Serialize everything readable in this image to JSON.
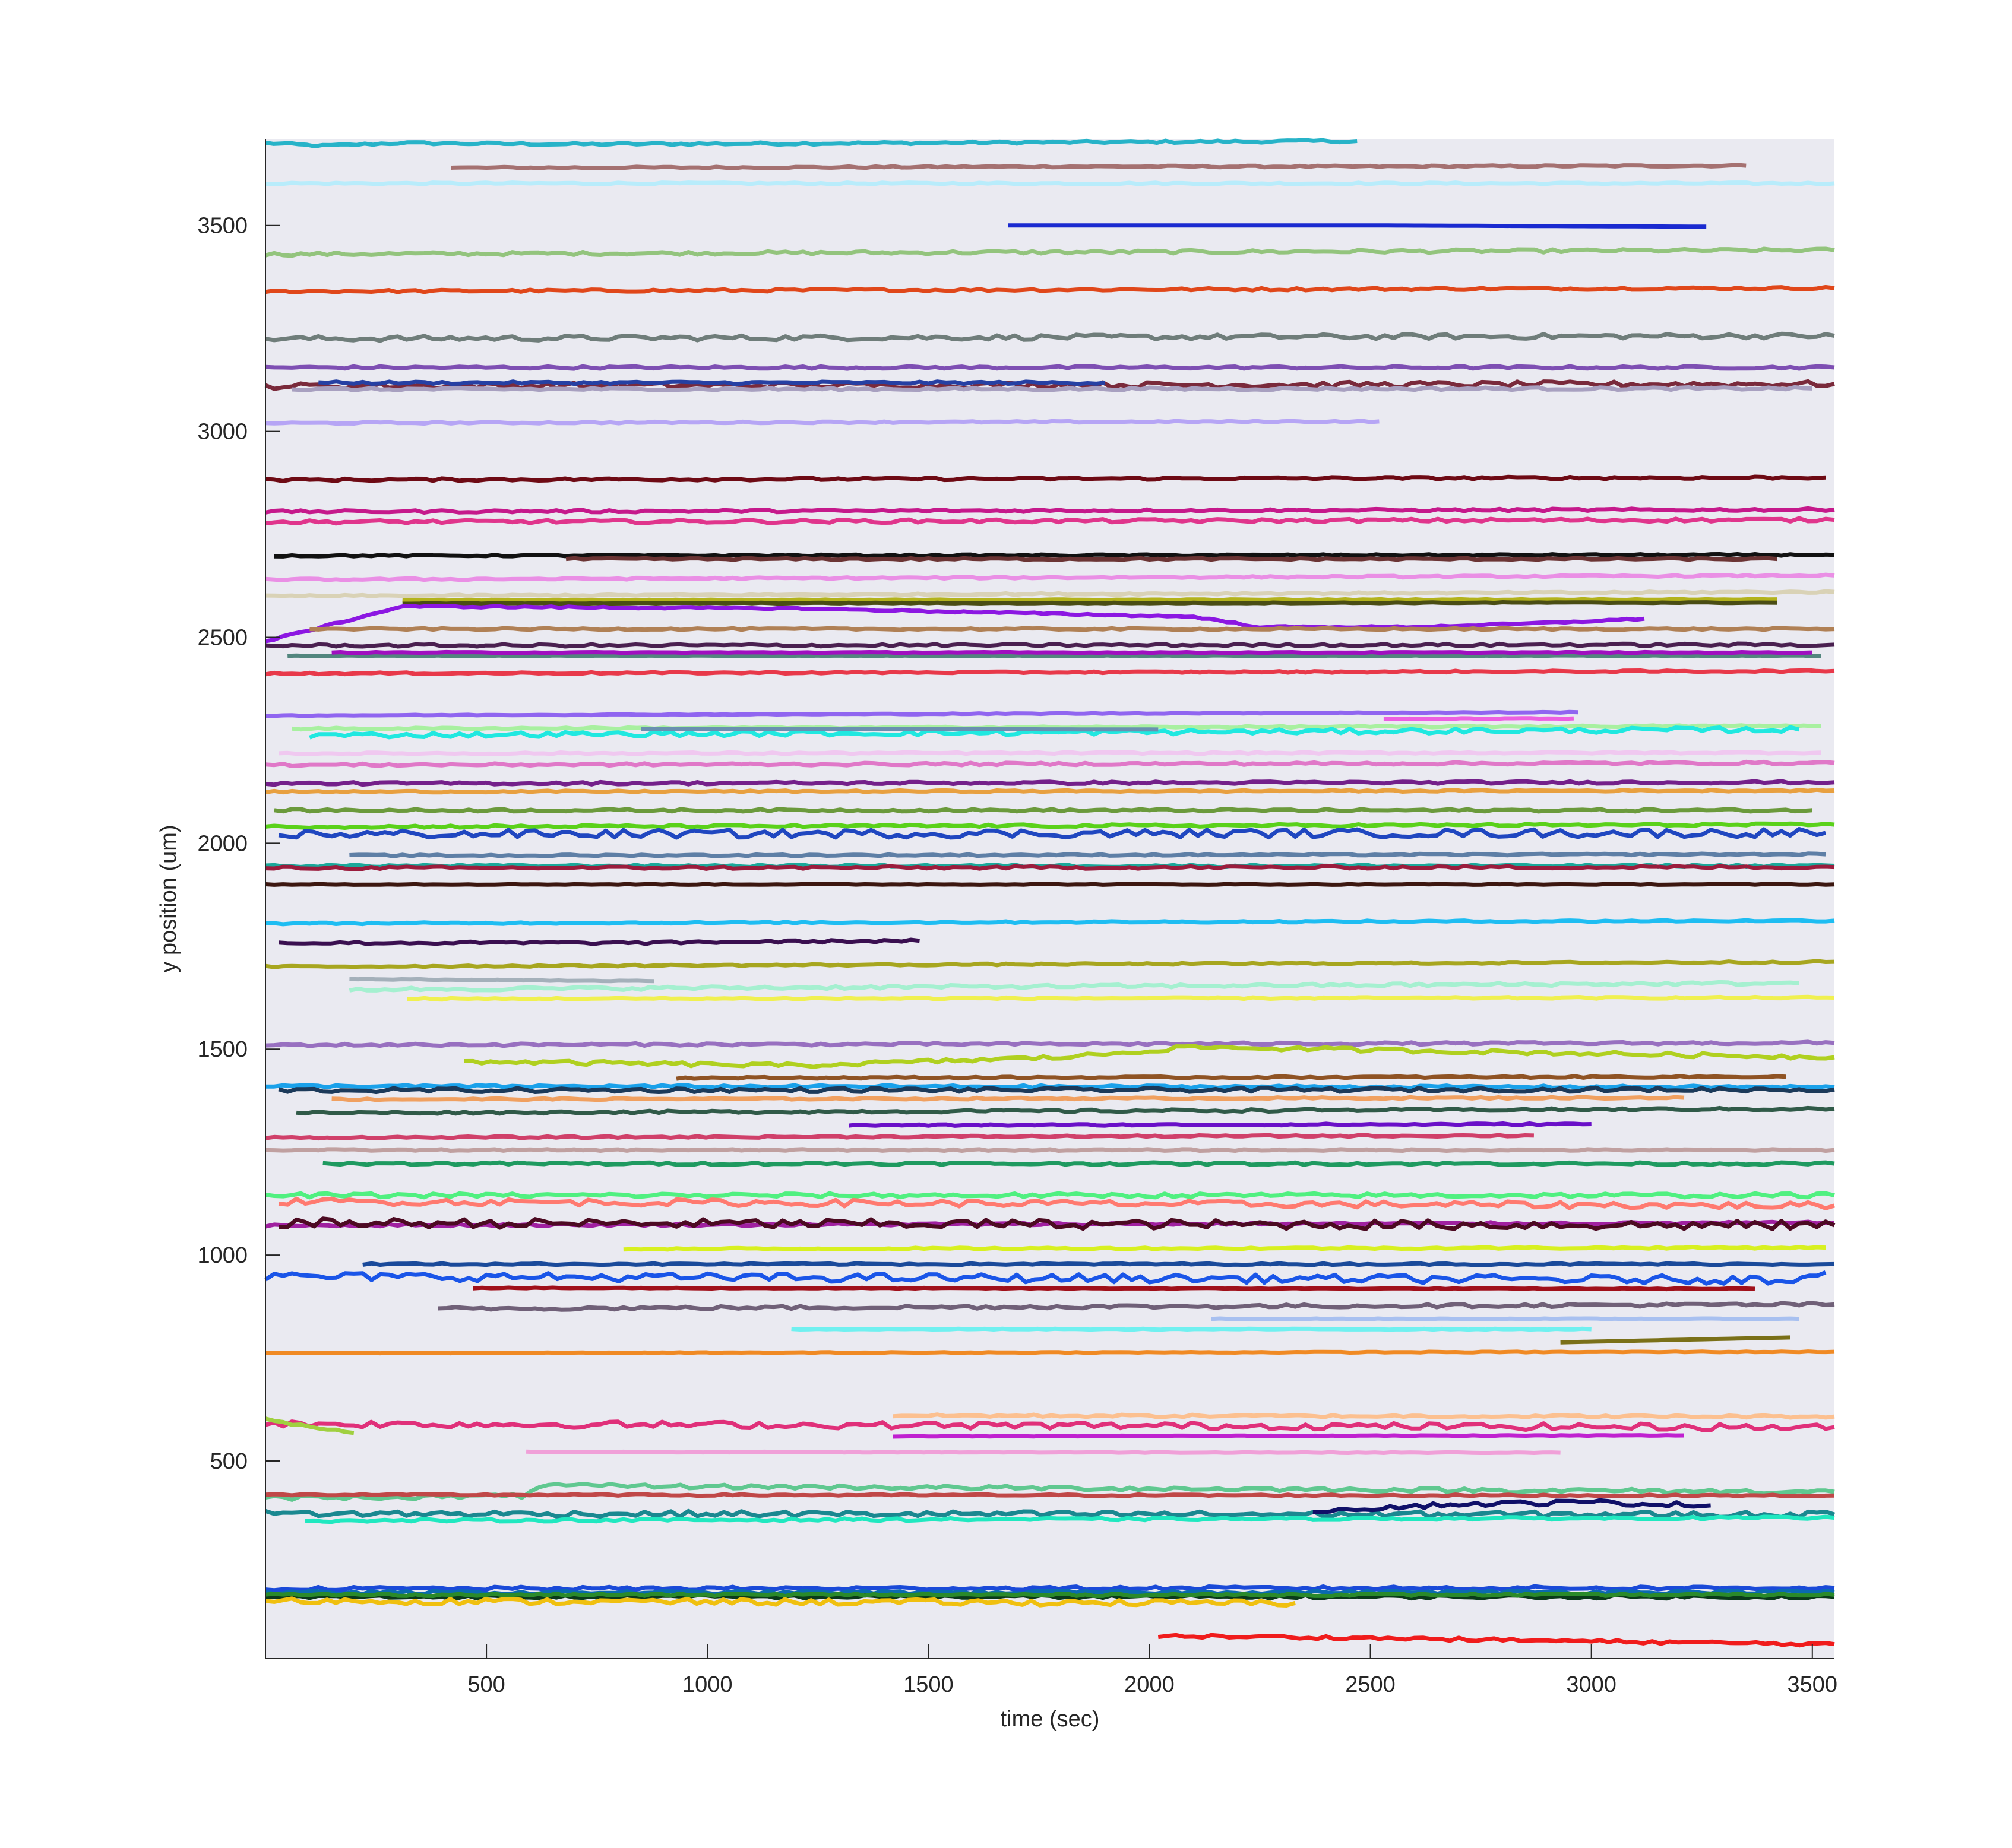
{
  "chart_data": {
    "type": "line",
    "title": "",
    "xlabel": "time (sec)",
    "ylabel": "y position (um)",
    "xlim": [
      0,
      3550
    ],
    "ylim": [
      20,
      3710
    ],
    "xticks": [
      500,
      1000,
      1500,
      2000,
      2500,
      3000,
      3500
    ],
    "yticks": [
      500,
      1000,
      1500,
      2000,
      2500,
      3000,
      3500
    ],
    "grid": false,
    "legend": "none",
    "background": "#eaeaf1",
    "series": [
      {
        "color": "#27b3c8",
        "x": [
          0,
          130,
          300,
          700,
          1200,
          1800,
          2470
        ],
        "y": [
          3700,
          3693,
          3700,
          3697,
          3699,
          3702,
          3705
        ],
        "jitter": 3
      },
      {
        "color": "#a57171",
        "x": [
          420,
          1200,
          1800,
          2500,
          3350
        ],
        "y": [
          3640,
          3641,
          3643,
          3643,
          3645
        ],
        "jitter": 2
      },
      {
        "color": "#b8ecfb",
        "x": [
          0,
          3550
        ],
        "y": [
          3602,
          3602
        ],
        "jitter": 2
      },
      {
        "color": "#1a2ad0",
        "x": [
          1680,
          2500,
          3260
        ],
        "y": [
          3500,
          3500,
          3497
        ],
        "jitter": 0
      },
      {
        "color": "#93c47d",
        "x": [
          0,
          3550
        ],
        "y": [
          3430,
          3440
        ],
        "jitter": 4
      },
      {
        "color": "#e0471a",
        "x": [
          0,
          3550
        ],
        "y": [
          3340,
          3348
        ],
        "jitter": 3
      },
      {
        "color": "#6f7d7a",
        "x": [
          0,
          3550
        ],
        "y": [
          3225,
          3232
        ],
        "jitter": 6
      },
      {
        "color": "#7e4fb3",
        "x": [
          0,
          3550
        ],
        "y": [
          3155,
          3155
        ],
        "jitter": 3
      },
      {
        "color": "#7a2a3b",
        "x": [
          0,
          3550
        ],
        "y": [
          3110,
          3115
        ],
        "jitter": 7
      },
      {
        "color": "#2640a3",
        "x": [
          120,
          1900
        ],
        "y": [
          3118,
          3118
        ],
        "jitter": 3
      },
      {
        "color": "#a8a0c0",
        "x": [
          60,
          3500
        ],
        "y": [
          3102,
          3104
        ],
        "jitter": 3
      },
      {
        "color": "#b6a5f5",
        "x": [
          0,
          2520
        ],
        "y": [
          3020,
          3024
        ],
        "jitter": 2
      },
      {
        "color": "#6e0a14",
        "x": [
          0,
          3530
        ],
        "y": [
          2882,
          2888
        ],
        "jitter": 3
      },
      {
        "color": "#c5198b",
        "x": [
          0,
          3550
        ],
        "y": [
          2805,
          2810
        ],
        "jitter": 3
      },
      {
        "color": "#e0358c",
        "x": [
          0,
          3550
        ],
        "y": [
          2780,
          2785
        ],
        "jitter": 4
      },
      {
        "color": "#111111",
        "x": [
          20,
          3550
        ],
        "y": [
          2698,
          2700
        ],
        "jitter": 2
      },
      {
        "color": "#6b3434",
        "x": [
          680,
          3420
        ],
        "y": [
          2690,
          2690
        ],
        "jitter": 2
      },
      {
        "color": "#ea8fe5",
        "x": [
          0,
          3550
        ],
        "y": [
          2640,
          2650
        ],
        "jitter": 2
      },
      {
        "color": "#d9d2b6",
        "x": [
          0,
          3550
        ],
        "y": [
          2600,
          2610
        ],
        "jitter": 2
      },
      {
        "color": "#b3b31c",
        "x": [
          310,
          3420
        ],
        "y": [
          2590,
          2592
        ],
        "jitter": 1
      },
      {
        "color": "#4a4d14",
        "x": [
          310,
          1200,
          2000,
          2800,
          3420
        ],
        "y": [
          2582,
          2583,
          2583,
          2584,
          2584
        ],
        "jitter": 1
      },
      {
        "color": "#8c17e2",
        "x": [
          0,
          310,
          1200,
          2100,
          2250,
          2600,
          2900,
          3120
        ],
        "y": [
          2490,
          2575,
          2570,
          2550,
          2525,
          2525,
          2535,
          2545
        ],
        "jitter": 2
      },
      {
        "color": "#b08055",
        "x": [
          100,
          3550
        ],
        "y": [
          2520,
          2520
        ],
        "jitter": 2
      },
      {
        "color": "#4a2050",
        "x": [
          0,
          3550
        ],
        "y": [
          2480,
          2482
        ],
        "jitter": 3
      },
      {
        "color": "#52867e",
        "x": [
          50,
          3520
        ],
        "y": [
          2455,
          2455
        ],
        "jitter": 1
      },
      {
        "color": "#a00fc0",
        "x": [
          150,
          3500
        ],
        "y": [
          2463,
          2463
        ],
        "jitter": 1
      },
      {
        "color": "#e8394a",
        "x": [
          0,
          3550
        ],
        "y": [
          2412,
          2418
        ],
        "jitter": 2
      },
      {
        "color": "#9065f0",
        "x": [
          0,
          2970
        ],
        "y": [
          2310,
          2318
        ],
        "jitter": 1
      },
      {
        "color": "#ec5fe0",
        "x": [
          2530,
          2960
        ],
        "y": [
          2302,
          2303
        ],
        "jitter": 1
      },
      {
        "color": "#a8f0a0",
        "x": [
          60,
          3520
        ],
        "y": [
          2278,
          2285
        ],
        "jitter": 2
      },
      {
        "color": "#20e8e0",
        "x": [
          100,
          3470
        ],
        "y": [
          2262,
          2276
        ],
        "jitter": 6
      },
      {
        "color": "#6a90b0",
        "x": [
          850,
          2020
        ],
        "y": [
          2278,
          2276
        ],
        "jitter": 0
      },
      {
        "color": "#f0c8f0",
        "x": [
          30,
          3520
        ],
        "y": [
          2218,
          2220
        ],
        "jitter": 2
      },
      {
        "color": "#e078c8",
        "x": [
          0,
          3550
        ],
        "y": [
          2190,
          2195
        ],
        "jitter": 3
      },
      {
        "color": "#74208a",
        "x": [
          0,
          3550
        ],
        "y": [
          2145,
          2148
        ],
        "jitter": 3
      },
      {
        "color": "#e8a040",
        "x": [
          0,
          3550
        ],
        "y": [
          2125,
          2128
        ],
        "jitter": 2
      },
      {
        "color": "#6b9a3c",
        "x": [
          20,
          3500
        ],
        "y": [
          2080,
          2080
        ],
        "jitter": 3
      },
      {
        "color": "#5ad11a",
        "x": [
          0,
          3550
        ],
        "y": [
          2040,
          2045
        ],
        "jitter": 3
      },
      {
        "color": "#2047c0",
        "x": [
          30,
          3530
        ],
        "y": [
          2022,
          2025
        ],
        "jitter": 10
      },
      {
        "color": "#5e7fa6",
        "x": [
          190,
          3530
        ],
        "y": [
          1970,
          1973
        ],
        "jitter": 2
      },
      {
        "color": "#1aa89a",
        "x": [
          0,
          3550
        ],
        "y": [
          1945,
          1945
        ],
        "jitter": 3
      },
      {
        "color": "#9b1c3d",
        "x": [
          0,
          3550
        ],
        "y": [
          1940,
          1942
        ],
        "jitter": 3
      },
      {
        "color": "#3c1710",
        "x": [
          0,
          3550
        ],
        "y": [
          1900,
          1900
        ],
        "jitter": 1
      },
      {
        "color": "#1ebdf2",
        "x": [
          0,
          3550
        ],
        "y": [
          1805,
          1812
        ],
        "jitter": 2
      },
      {
        "color": "#3a0f50",
        "x": [
          30,
          900,
          1000,
          1480
        ],
        "y": [
          1758,
          1758,
          1760,
          1763
        ],
        "jitter": 3
      },
      {
        "color": "#a7a61f",
        "x": [
          0,
          3550
        ],
        "y": [
          1700,
          1712
        ],
        "jitter": 2
      },
      {
        "color": "#a4b0ba",
        "x": [
          190,
          880
        ],
        "y": [
          1670,
          1665
        ],
        "jitter": 1
      },
      {
        "color": "#a5f0d0",
        "x": [
          190,
          3470
        ],
        "y": [
          1645,
          1660
        ],
        "jitter": 4
      },
      {
        "color": "#f0f050",
        "x": [
          320,
          3550
        ],
        "y": [
          1622,
          1625
        ],
        "jitter": 2
      },
      {
        "color": "#9870c0",
        "x": [
          0,
          3550
        ],
        "y": [
          1510,
          1515
        ],
        "jitter": 3
      },
      {
        "color": "#b0d020",
        "x": [
          450,
          1200,
          1800,
          2100,
          3550
        ],
        "y": [
          1470,
          1460,
          1480,
          1505,
          1480
        ],
        "jitter": 5
      },
      {
        "color": "#8f5324",
        "x": [
          930,
          3440
        ],
        "y": [
          1430,
          1433
        ],
        "jitter": 2
      },
      {
        "color": "#1aa1ea",
        "x": [
          0,
          3550
        ],
        "y": [
          1410,
          1408
        ],
        "jitter": 3
      },
      {
        "color": "#1c3a5a",
        "x": [
          30,
          3550
        ],
        "y": [
          1400,
          1402
        ],
        "jitter": 5
      },
      {
        "color": "#f0a060",
        "x": [
          150,
          3210
        ],
        "y": [
          1378,
          1382
        ],
        "jitter": 2
      },
      {
        "color": "#305a48",
        "x": [
          70,
          3550
        ],
        "y": [
          1345,
          1355
        ],
        "jitter": 3
      },
      {
        "color": "#6a10c8",
        "x": [
          1320,
          3000
        ],
        "y": [
          1315,
          1318
        ],
        "jitter": 2
      },
      {
        "color": "#d0406a",
        "x": [
          0,
          2870
        ],
        "y": [
          1285,
          1290
        ],
        "jitter": 2
      },
      {
        "color": "#c0a0a0",
        "x": [
          0,
          3550
        ],
        "y": [
          1255,
          1255
        ],
        "jitter": 2
      },
      {
        "color": "#1f9a60",
        "x": [
          130,
          3550
        ],
        "y": [
          1222,
          1222
        ],
        "jitter": 3
      },
      {
        "color": "#50f080",
        "x": [
          0,
          3550
        ],
        "y": [
          1145,
          1145
        ],
        "jitter": 5
      },
      {
        "color": "#ff7a70",
        "x": [
          30,
          3550
        ],
        "y": [
          1130,
          1120
        ],
        "jitter": 8
      },
      {
        "color": "#a020a0",
        "x": [
          0,
          3550
        ],
        "y": [
          1072,
          1078
        ],
        "jitter": 3
      },
      {
        "color": "#4c0a22",
        "x": [
          30,
          3550
        ],
        "y": [
          1078,
          1072
        ],
        "jitter": 11
      },
      {
        "color": "#d8f020",
        "x": [
          810,
          3530
        ],
        "y": [
          1015,
          1018
        ],
        "jitter": 2
      },
      {
        "color": "#1a4a9a",
        "x": [
          220,
          3550
        ],
        "y": [
          978,
          978
        ],
        "jitter": 2
      },
      {
        "color": "#1a55e8",
        "x": [
          0,
          3440,
          3530
        ],
        "y": [
          948,
          940,
          958
        ],
        "jitter": 10
      },
      {
        "color": "#a0101a",
        "x": [
          470,
          3370
        ],
        "y": [
          920,
          918
        ],
        "jitter": 1
      },
      {
        "color": "#706078",
        "x": [
          390,
          3550
        ],
        "y": [
          870,
          880
        ],
        "jitter": 4
      },
      {
        "color": "#a8c0f0",
        "x": [
          2140,
          3470
        ],
        "y": [
          845,
          845
        ],
        "jitter": 1
      },
      {
        "color": "#70f0f0",
        "x": [
          1190,
          3000
        ],
        "y": [
          820,
          820
        ],
        "jitter": 1
      },
      {
        "color": "#7a7018",
        "x": [
          2930,
          3450
        ],
        "y": [
          788,
          800
        ],
        "jitter": 0
      },
      {
        "color": "#f08a24",
        "x": [
          0,
          3550
        ],
        "y": [
          762,
          765
        ],
        "jitter": 1
      },
      {
        "color": "#fcc090",
        "x": [
          1420,
          3550
        ],
        "y": [
          610,
          608
        ],
        "jitter": 3
      },
      {
        "color": "#e0307a",
        "x": [
          0,
          3550
        ],
        "y": [
          590,
          582
        ],
        "jitter": 8
      },
      {
        "color": "#a0d040",
        "x": [
          0,
          200
        ],
        "y": [
          600,
          568
        ],
        "jitter": 3
      },
      {
        "color": "#c021d0",
        "x": [
          1420,
          3210
        ],
        "y": [
          560,
          562
        ],
        "jitter": 1
      },
      {
        "color": "#f0a0d8",
        "x": [
          590,
          2930
        ],
        "y": [
          522,
          520
        ],
        "jitter": 1
      },
      {
        "color": "#60c890",
        "x": [
          0,
          580,
          620,
          3550
        ],
        "y": [
          410,
          415,
          440,
          425
        ],
        "jitter": 5
      },
      {
        "color": "#c04848",
        "x": [
          0,
          3550
        ],
        "y": [
          418,
          416
        ],
        "jitter": 2
      },
      {
        "color": "#1a8890",
        "x": [
          0,
          3550
        ],
        "y": [
          372,
          370
        ],
        "jitter": 7
      },
      {
        "color": "#101068",
        "x": [
          2370,
          2700,
          3000,
          3270
        ],
        "y": [
          380,
          395,
          400,
          392
        ],
        "jitter": 6
      },
      {
        "color": "#20e8c0",
        "x": [
          90,
          3550
        ],
        "y": [
          355,
          362
        ],
        "jitter": 3
      },
      {
        "color": "#1a4ad8",
        "x": [
          0,
          3550
        ],
        "y": [
          190,
          192
        ],
        "jitter": 4
      },
      {
        "color": "#0a6ab0",
        "x": [
          0,
          3550
        ],
        "y": [
          180,
          182
        ],
        "jitter": 4
      },
      {
        "color": "#0a3a1a",
        "x": [
          0,
          3550
        ],
        "y": [
          170,
          170
        ],
        "jitter": 4
      },
      {
        "color": "#2a8a2a",
        "x": [
          0,
          3550
        ],
        "y": [
          175,
          175
        ],
        "jitter": 3
      },
      {
        "color": "#f0c010",
        "x": [
          0,
          2330
        ],
        "y": [
          160,
          155
        ],
        "jitter": 7
      },
      {
        "color": "#f01c1c",
        "x": [
          2020,
          2500,
          3000,
          3550
        ],
        "y": [
          75,
          70,
          62,
          55
        ],
        "jitter": 4
      }
    ]
  }
}
